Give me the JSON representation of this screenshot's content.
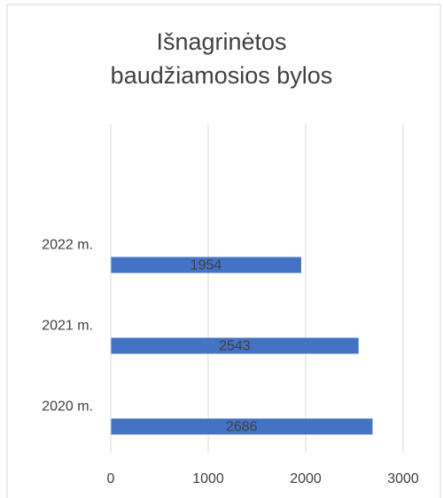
{
  "chart_data": {
    "type": "hbar",
    "title": "Išnagrinėtos baudžiamosios bylos",
    "categories": [
      "2020 m.",
      "2021 m.",
      "2022 m."
    ],
    "values": [
      2686,
      2543,
      1954
    ],
    "color": "#4472c4",
    "xlim": [
      0,
      3000
    ],
    "xticks": [
      0,
      1000,
      2000,
      3000
    ],
    "grid": true
  }
}
